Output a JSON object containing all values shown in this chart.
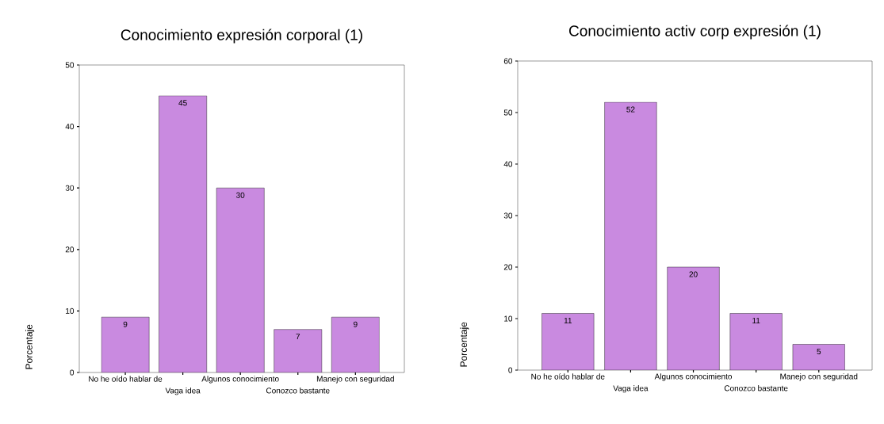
{
  "chart_data": [
    {
      "type": "bar",
      "title": "Conocimiento expresión corporal (1)",
      "ylabel": "Porcentaje",
      "categories": [
        "No he oído hablar de",
        "Vaga idea",
        "Algunos conocimiento",
        "Conozco bastante",
        "Manejo con seguridad"
      ],
      "values": [
        9,
        45,
        30,
        7,
        9
      ],
      "color": "#c98ae0",
      "ylim": [
        0,
        50
      ],
      "yticks": [
        0,
        10,
        20,
        30,
        40,
        50
      ],
      "data_labels": true
    },
    {
      "type": "bar",
      "title": "Conocimiento activ corp expresión (1)",
      "ylabel": "Porcentaje",
      "categories": [
        "No he oído hablar de",
        "Vaga idea",
        "Algunos conocimiento",
        "Conozco bastante",
        "Manejo con seguridad"
      ],
      "values": [
        11,
        52,
        20,
        11,
        5
      ],
      "color": "#c98ae0",
      "ylim": [
        0,
        60
      ],
      "yticks": [
        0,
        10,
        20,
        30,
        40,
        50,
        60
      ],
      "data_labels": true
    }
  ]
}
